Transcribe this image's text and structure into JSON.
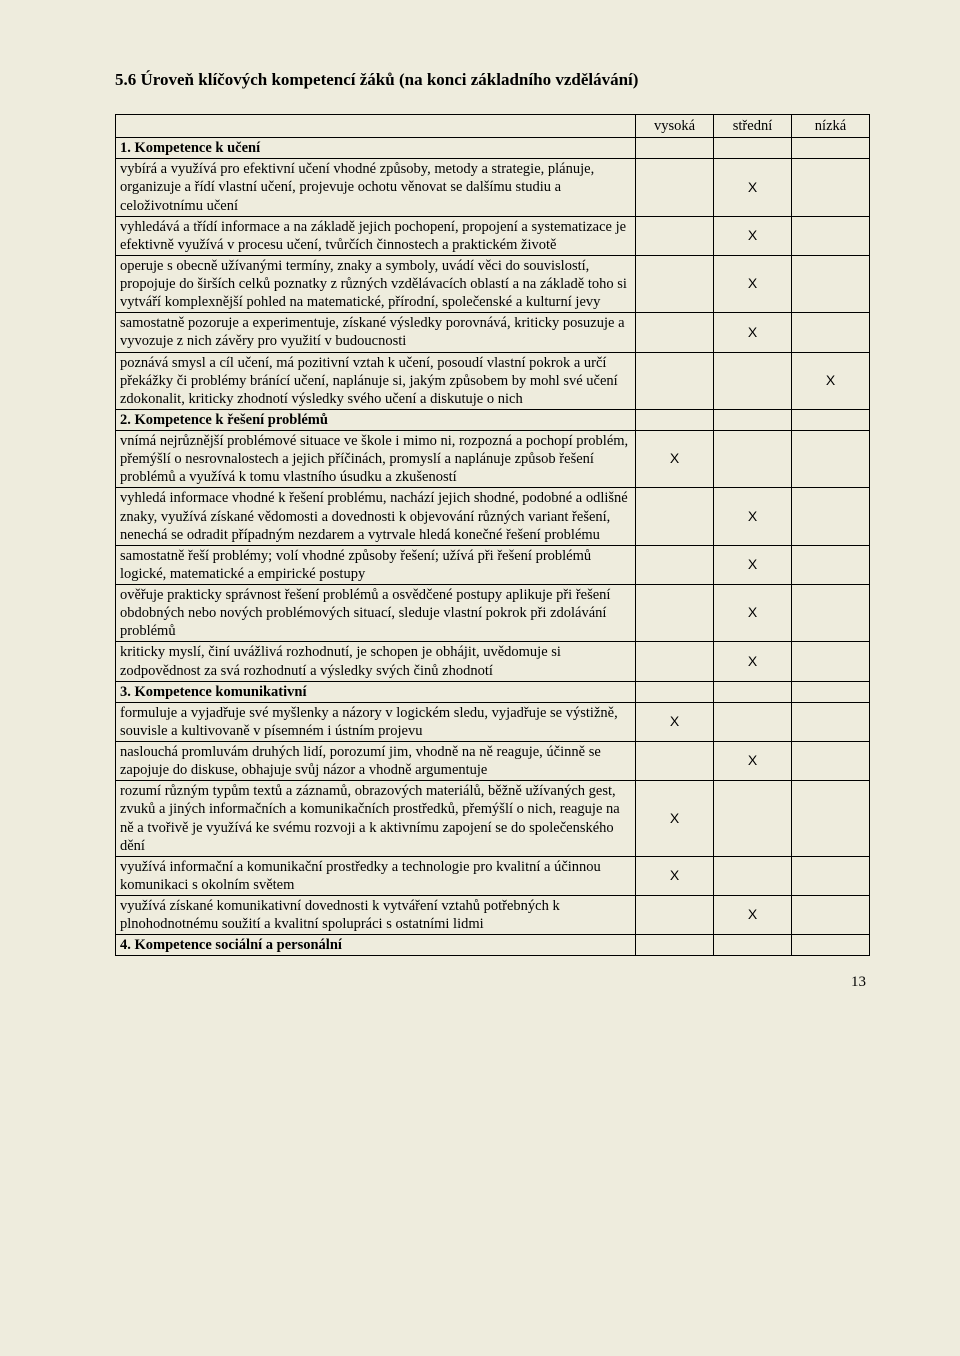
{
  "title": "5.6 Úroveň klíčových kompetencí žáků (na konci základního vzdělávání)",
  "columns": {
    "c1": "vysoká",
    "c2": "střední",
    "c3": "nízká"
  },
  "pageNumber": "13",
  "rows": [
    {
      "heading": true,
      "text": "1. Kompetence k učení"
    },
    {
      "text": "vybírá a využívá pro efektivní učení vhodné způsoby, metody a strategie, plánuje, organizuje a řídí vlastní učení, projevuje ochotu věnovat se dalšímu studiu a celoživotnímu učení",
      "v": "",
      "s": "X",
      "n": ""
    },
    {
      "text": "vyhledává a třídí informace a na základě jejich pochopení, propojení a systematizace je efektivně využívá v procesu učení, tvůrčích činnostech a praktickém životě",
      "v": "",
      "s": "X",
      "n": ""
    },
    {
      "text": "operuje s obecně užívanými termíny, znaky a symboly, uvádí věci do souvislostí, propojuje do širších celků poznatky z různých vzdělávacích oblastí a na základě toho si vytváří komplexnější pohled na matematické, přírodní, společenské a kulturní jevy",
      "v": "",
      "s": "X",
      "n": ""
    },
    {
      "text": "samostatně pozoruje a experimentuje, získané výsledky porovnává, kriticky posuzuje a vyvozuje z nich závěry pro využití v budoucnosti",
      "v": "",
      "s": "X",
      "n": ""
    },
    {
      "text": "poznává smysl a cíl učení, má pozitivní vztah k učení, posoudí vlastní pokrok a určí překážky či problémy bránící učení, naplánuje si, jakým způsobem by mohl své učení zdokonalit, kriticky zhodnotí výsledky svého učení a diskutuje o nich",
      "v": "",
      "s": "",
      "n": "X"
    },
    {
      "heading": true,
      "text": "2. Kompetence k řešení problémů"
    },
    {
      "text": "vnímá nejrůznější problémové situace ve škole i mimo ni, rozpozná a pochopí problém, přemýšlí o nesrovnalostech a jejich příčinách, promyslí a naplánuje způsob řešení problémů a využívá k tomu vlastního úsudku a zkušeností",
      "v": "X",
      "s": "",
      "n": ""
    },
    {
      "text": "vyhledá informace vhodné k řešení problému, nachází jejich shodné, podobné a odlišné znaky, využívá získané vědomosti a dovednosti k objevování různých variant řešení, nenechá se odradit případným nezdarem a vytrvale hledá konečné řešení problému",
      "v": "",
      "s": "X",
      "n": ""
    },
    {
      "text": "samostatně řeší problémy; volí vhodné způsoby řešení; užívá při řešení problémů logické, matematické a empirické postupy",
      "v": "",
      "s": "X",
      "n": ""
    },
    {
      "text": "ověřuje prakticky správnost řešení problémů a osvědčené postupy aplikuje při řešení obdobných nebo nových problémových situací, sleduje vlastní pokrok při zdolávání problémů",
      "v": "",
      "s": "X",
      "n": ""
    },
    {
      "text": "kriticky myslí, činí uvážlivá rozhodnutí, je schopen je obhájit, uvědomuje si zodpovědnost za svá rozhodnutí a výsledky svých činů zhodnotí",
      "v": "",
      "s": "X",
      "n": ""
    },
    {
      "heading": true,
      "text": "3. Kompetence komunikativní"
    },
    {
      "text": "formuluje a vyjadřuje své myšlenky a názory v logickém sledu, vyjadřuje se výstižně, souvisle a kultivovaně v písemném i ústním projevu",
      "v": "X",
      "s": "",
      "n": ""
    },
    {
      "text": "naslouchá promluvám druhých lidí, porozumí jim, vhodně na ně reaguje, účinně se zapojuje do diskuse, obhajuje svůj názor a vhodně argumentuje",
      "v": "",
      "s": "X",
      "n": ""
    },
    {
      "text": "rozumí různým typům textů a záznamů, obrazových materiálů, běžně užívaných gest, zvuků a jiných informačních a komunikačních prostředků, přemýšlí o nich, reaguje na ně a tvořivě je využívá ke svému rozvoji a k aktivnímu zapojení se do společenského dění",
      "v": "X",
      "s": "",
      "n": ""
    },
    {
      "text": "využívá informační a komunikační prostředky a technologie pro kvalitní a účinnou komunikaci s okolním světem",
      "v": "X",
      "s": "",
      "n": ""
    },
    {
      "text": "využívá získané komunikativní dovednosti k vytváření vztahů potřebných k plnohodnotnému soužití a kvalitní spolupráci s ostatními lidmi",
      "v": "",
      "s": "X",
      "n": ""
    },
    {
      "heading": true,
      "text": "4. Kompetence sociální a personální"
    }
  ]
}
